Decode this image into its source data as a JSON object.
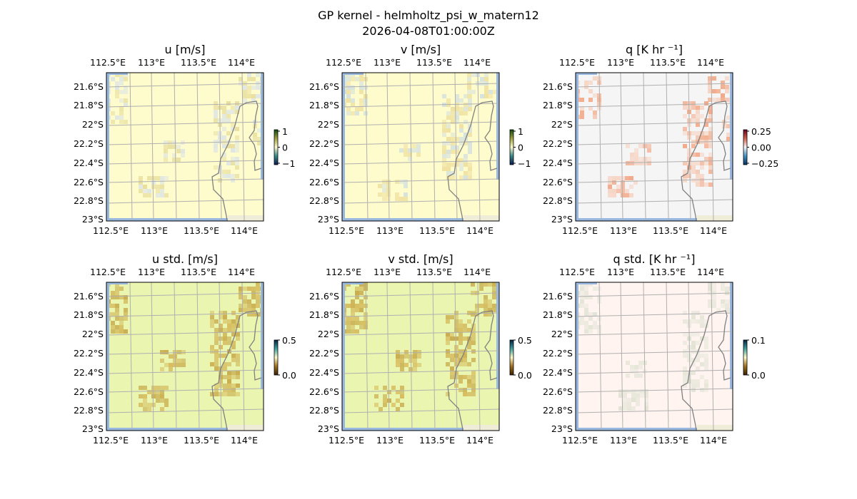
{
  "figure": {
    "title": "GP kernel - helmholtz_psi_w_matern12",
    "timestamp": "2026-04-08T01:00:00Z"
  },
  "x_tick_labels": [
    "112.5°E",
    "113°E",
    "113.5°E",
    "114°E"
  ],
  "y_tick_labels": [
    "21.6°S",
    "21.8°S",
    "22°S",
    "22.2°S",
    "22.4°S",
    "22.6°S",
    "22.8°S",
    "23°S"
  ],
  "panels": [
    {
      "title": "u [m/s]",
      "colorbar_ticks": [
        "1",
        "0",
        "−1"
      ],
      "cmap": "diverging",
      "background": "#fefbcc",
      "field_color": "#e9e0a0",
      "alt_color": "#dfe6e4"
    },
    {
      "title": "v [m/s]",
      "colorbar_ticks": [
        "1",
        "0",
        "−1"
      ],
      "cmap": "diverging",
      "background": "#fefbcc",
      "field_color": "#efe1a0",
      "alt_color": "#d6e2de"
    },
    {
      "title": "q [K hr ⁻¹]",
      "colorbar_ticks": [
        "0.25",
        "0.00",
        "−0.25"
      ],
      "cmap": "RdBu_r",
      "background": "#f5f5f5",
      "field_color": "#f2aa8a",
      "alt_color": "#f6d4c4"
    },
    {
      "title": "u std. [m/s]",
      "colorbar_ticks": [
        "0.5",
        "0.0"
      ],
      "cmap": "sequential",
      "background": "#eaf5b0",
      "field_color": "#c9ae50",
      "alt_color": "#d6bd60"
    },
    {
      "title": "v std. [m/s]",
      "colorbar_ticks": [
        "0.5",
        "0.0"
      ],
      "cmap": "sequential",
      "background": "#eaf5b0",
      "field_color": "#c9ae50",
      "alt_color": "#d6bd60"
    },
    {
      "title": "q std. [K hr ⁻¹]",
      "colorbar_ticks": [
        "0.1",
        "0.0"
      ],
      "cmap": "sequential",
      "background": "#fff4f0",
      "field_color": "#e2e3d4",
      "alt_color": "#ebe9de"
    }
  ],
  "colors": {
    "ocean_mask": "#98b8e0",
    "land": "#efecd8",
    "coastline": "#808080",
    "gridline": "#b0b0b0"
  }
}
